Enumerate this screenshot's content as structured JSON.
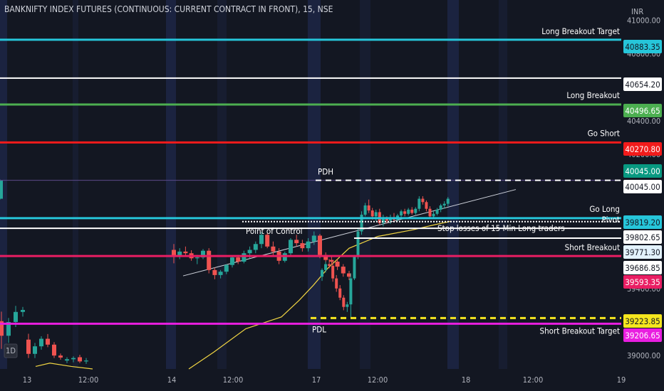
{
  "header": {
    "title": "BANKNIFTY INDEX FUTURES (CONTINUOUS: CURRENT CONTRACT IN FRONT), 15, NSE",
    "currency": "INR"
  },
  "interval_badge": "1D",
  "colors": {
    "background": "#131722",
    "up": "#26a69a",
    "down": "#ef5350",
    "cyan": "#26c6da",
    "white": "#ffffff",
    "green": "#4caf50",
    "red": "#f21b1b",
    "magenta": "#e91ee0",
    "crimson": "#e91e63",
    "yellow": "#f5e61e",
    "teal_tag": "#089981",
    "ma": "#f1d543"
  },
  "chart_data": {
    "type": "candlestick",
    "title": "BANKNIFTY INDEX FUTURES (CONTINUOUS: CURRENT CONTRACT IN FRONT), 15, NSE",
    "ylabel": "INR",
    "ylim": [
      38920,
      41120
    ],
    "x_ticks": [
      "13",
      "12:00",
      "14",
      "12:00",
      "17",
      "12:00",
      "18",
      "12:00",
      "19"
    ],
    "y_ticks": [
      41000,
      40800,
      40600,
      40400,
      40200,
      40000,
      39800,
      39600,
      39400,
      39000
    ],
    "candles": [
      [
        39205,
        39262,
        39040,
        39118
      ],
      [
        39118,
        39224,
        39075,
        39200
      ],
      [
        39200,
        39296,
        39170,
        39260
      ],
      [
        39260,
        39290,
        39232,
        39272
      ],
      [
        39095,
        39130,
        38985,
        39010
      ],
      [
        39010,
        39075,
        38985,
        39055
      ],
      [
        39055,
        39115,
        39035,
        39100
      ],
      [
        39100,
        39128,
        39050,
        39065
      ],
      [
        39065,
        39080,
        38985,
        39000
      ],
      [
        39000,
        39012,
        38975,
        38988
      ],
      [
        38970,
        38990,
        38955,
        38978
      ],
      [
        38978,
        38995,
        38960,
        38985
      ],
      [
        38990,
        39005,
        38955,
        38965
      ],
      [
        38965,
        38985,
        38950,
        38970
      ],
      [
        39630,
        39665,
        39550,
        39595
      ],
      [
        39595,
        39640,
        39575,
        39620
      ],
      [
        39620,
        39650,
        39595,
        39610
      ],
      [
        39610,
        39628,
        39565,
        39580
      ],
      [
        39580,
        39600,
        39545,
        39585
      ],
      [
        39585,
        39635,
        39575,
        39625
      ],
      [
        39625,
        39640,
        39490,
        39510
      ],
      [
        39510,
        39525,
        39455,
        39480
      ],
      [
        39480,
        39510,
        39460,
        39500
      ],
      [
        39500,
        39545,
        39485,
        39540
      ],
      [
        39540,
        39595,
        39525,
        39585
      ],
      [
        39585,
        39600,
        39545,
        39560
      ],
      [
        39560,
        39625,
        39550,
        39610
      ],
      [
        39610,
        39650,
        39580,
        39630
      ],
      [
        39630,
        39680,
        39610,
        39665
      ],
      [
        39665,
        39735,
        39640,
        39720
      ],
      [
        39720,
        39730,
        39640,
        39650
      ],
      [
        39650,
        39680,
        39600,
        39620
      ],
      [
        39620,
        39640,
        39545,
        39565
      ],
      [
        39565,
        39620,
        39555,
        39610
      ],
      [
        39610,
        39700,
        39600,
        39690
      ],
      [
        39690,
        39720,
        39650,
        39670
      ],
      [
        39670,
        39690,
        39620,
        39640
      ],
      [
        39640,
        39700,
        39620,
        39680
      ],
      [
        39680,
        39740,
        39660,
        39715
      ],
      [
        39715,
        39725,
        39580,
        39600
      ],
      [
        39600,
        39615,
        39555,
        39570
      ],
      [
        39570,
        39590,
        39540,
        39560
      ],
      [
        39560,
        39575,
        39510,
        39530
      ],
      [
        39530,
        39545,
        39470,
        39490
      ],
      [
        39490,
        39505,
        39450,
        39470
      ],
      [
        39470,
        39520,
        39445,
        39510
      ],
      [
        39510,
        39560,
        39495,
        39545
      ],
      [
        39545,
        39575,
        39520,
        39535
      ],
      [
        39535,
        39560,
        39440,
        39460
      ],
      [
        39460,
        39480,
        39380,
        39400
      ],
      [
        39400,
        39420,
        39330,
        39345
      ],
      [
        39345,
        39360,
        39270,
        39290
      ],
      [
        39290,
        39320,
        39260,
        39305
      ],
      [
        39305,
        39490,
        39225,
        39460
      ],
      [
        39460,
        39600,
        39450,
        39590
      ],
      [
        39590,
        39760,
        39575,
        39740
      ],
      [
        39740,
        39860,
        39720,
        39840
      ],
      [
        39840,
        39910,
        39830,
        39895
      ],
      [
        39895,
        39930,
        39850,
        39865
      ],
      [
        39865,
        39880,
        39810,
        39830
      ],
      [
        39830,
        39870,
        39800,
        39855
      ],
      [
        39855,
        39875,
        39780,
        39790
      ],
      [
        39790,
        39840,
        39770,
        39815
      ],
      [
        39815,
        39830,
        39790,
        39805
      ],
      [
        39805,
        39840,
        39785,
        39825
      ],
      [
        39825,
        39850,
        39795,
        39810
      ],
      [
        39810,
        39845,
        39800,
        39835
      ],
      [
        39835,
        39870,
        39815,
        39860
      ],
      [
        39860,
        39875,
        39830,
        39845
      ],
      [
        39845,
        39880,
        39835,
        39870
      ],
      [
        39870,
        39885,
        39840,
        39850
      ],
      [
        39850,
        39885,
        39840,
        39875
      ],
      [
        39875,
        39950,
        39860,
        39935
      ],
      [
        39935,
        39950,
        39900,
        39915
      ],
      [
        39915,
        39925,
        39860,
        39875
      ],
      [
        39875,
        39890,
        39820,
        39830
      ],
      [
        39830,
        39860,
        39815,
        39845
      ],
      [
        39845,
        39880,
        39835,
        39870
      ],
      [
        39870,
        39905,
        39855,
        39895
      ],
      [
        39895,
        39920,
        39875,
        39905
      ],
      [
        39905,
        39945,
        39890,
        39935
      ],
      [
        39935,
        40050,
        39930,
        40045
      ]
    ],
    "levels": [
      {
        "name": "Long Breakout Target",
        "value": 40883.35,
        "color": "#26c6da"
      },
      {
        "name": "",
        "value": 40654.2,
        "color": "#ffffff"
      },
      {
        "name": "Long Breakout",
        "value": 40496.65,
        "color": "#4caf50"
      },
      {
        "name": "Go Short",
        "value": 40270.8,
        "color": "#f21b1b"
      },
      {
        "name": "Go Long",
        "value": 39819.2,
        "color": "#26c6da"
      },
      {
        "name": "Pivot",
        "value": 39802.65,
        "color": "#ffffff"
      },
      {
        "name": "Stop losses of 15 Min Long traders",
        "value": 39771.3,
        "color": "#ffffff"
      },
      {
        "name": "Short Breakout",
        "value": 39593.35,
        "color": "#e91e63"
      },
      {
        "name": "Short Breakout Target",
        "value": 39206.65,
        "color": "#e91ee0"
      }
    ],
    "price_tags": [
      {
        "value": "40883.35",
        "price": 40883.35,
        "bg": "#26c6da",
        "fg": "#131722"
      },
      {
        "value": "40654.20",
        "price": 40654.2,
        "bg": "#ffffff",
        "fg": "#131722"
      },
      {
        "value": "40496.65",
        "price": 40496.65,
        "bg": "#4caf50",
        "fg": "#ffffff"
      },
      {
        "value": "40270.80",
        "price": 40270.8,
        "bg": "#f21b1b",
        "fg": "#ffffff"
      },
      {
        "value": "40045.00",
        "price": 40045.0,
        "bg": "#089981",
        "fg": "#ffffff"
      },
      {
        "value": "40045.00",
        "price": 40045.0,
        "bg": "#ffffff",
        "fg": "#131722"
      },
      {
        "value": "39819.20",
        "price": 39819.2,
        "bg": "#26c6da",
        "fg": "#131722"
      },
      {
        "value": "39802.65",
        "price": 39802.65,
        "bg": "#ffffff",
        "fg": "#131722"
      },
      {
        "value": "39771.30",
        "price": 39771.3,
        "bg": "#e3f2fd",
        "fg": "#131722"
      },
      {
        "value": "39686.85",
        "price": 39686.85,
        "bg": "#ffffff",
        "fg": "#131722"
      },
      {
        "value": "39593.35",
        "price": 39593.35,
        "bg": "#e91e63",
        "fg": "#ffffff"
      },
      {
        "value": "39223.85",
        "price": 39223.85,
        "bg": "#f5e61e",
        "fg": "#131722"
      },
      {
        "value": "39206.65",
        "price": 39206.65,
        "bg": "#e91ee0",
        "fg": "#ffffff"
      }
    ],
    "annotations": {
      "pdh": {
        "label": "PDH",
        "value": 40045.0
      },
      "pdl": {
        "label": "PDL",
        "value": 39223.85
      },
      "point_of_control": {
        "label": "Point of Control",
        "value": 39802.65
      },
      "stop_loss": {
        "label": "Stop losses of 15 Min Long traders",
        "value": 39771.3
      }
    },
    "trendlines": [
      {
        "from": [
          "14",
          39475
        ],
        "to": [
          "18",
          39990
        ]
      }
    ],
    "moving_average": [
      {
        "x": "14",
        "y": 38920
      },
      {
        "x": "14",
        "y": 39030
      },
      {
        "x": "12:00",
        "y": 39160
      },
      {
        "x": "17",
        "y": 39250
      },
      {
        "x": "17",
        "y": 39540
      },
      {
        "x": "12:00",
        "y": 39720
      },
      {
        "x": "18",
        "y": 39830
      }
    ]
  }
}
